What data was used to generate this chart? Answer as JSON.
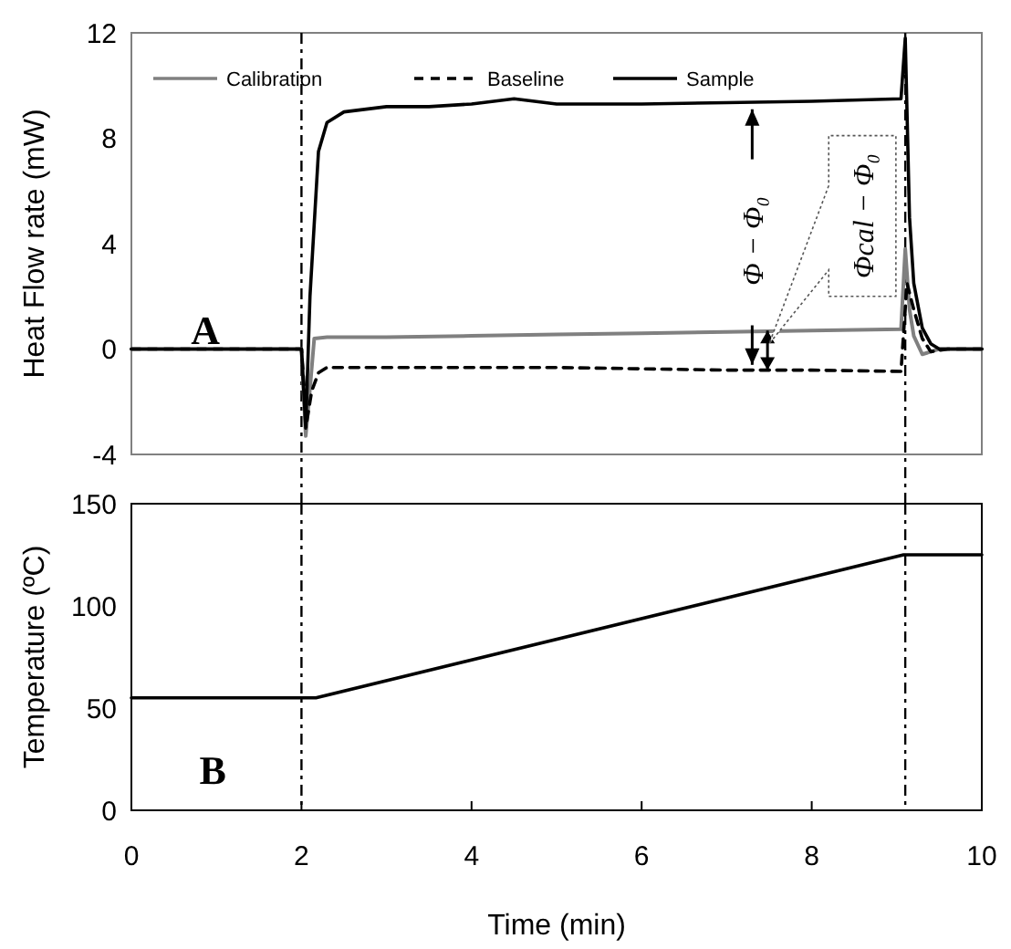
{
  "chart_data": [
    {
      "type": "line",
      "ylabel": "Heat Flow rate (mW)",
      "xlim": [
        0,
        10
      ],
      "ylim": [
        -4,
        12
      ],
      "yticks": [
        -4,
        0,
        4,
        8,
        12
      ],
      "tick_labels": "y",
      "grid": false,
      "legend": "top left",
      "series": [
        {
          "name": "Calibration",
          "color": "#808080",
          "line_style": "solid",
          "x": [
            0,
            2.0,
            2.05,
            2.1,
            2.15,
            2.3,
            3,
            4,
            5,
            6,
            7,
            8,
            9.05,
            9.1,
            9.15,
            9.2,
            9.3,
            9.4,
            9.5,
            10
          ],
          "values": [
            0,
            0,
            -3.3,
            -1.5,
            0.4,
            0.45,
            0.45,
            0.5,
            0.55,
            0.6,
            0.65,
            0.7,
            0.75,
            3.8,
            1.5,
            0.5,
            -0.2,
            -0.1,
            0,
            0
          ]
        },
        {
          "name": "Baseline",
          "color": "#000000",
          "line_style": "dashed",
          "x": [
            0,
            2.0,
            2.06,
            2.12,
            2.2,
            2.3,
            3,
            4,
            5,
            6,
            7,
            8,
            9.05,
            9.12,
            9.2,
            9.3,
            9.4,
            9.6,
            10
          ],
          "values": [
            0,
            0,
            -2.8,
            -1.6,
            -0.9,
            -0.7,
            -0.7,
            -0.7,
            -0.7,
            -0.75,
            -0.8,
            -0.8,
            -0.85,
            2.5,
            1.5,
            0.4,
            -0.1,
            0,
            0
          ]
        },
        {
          "name": "Sample",
          "color": "#000000",
          "line_style": "solid",
          "x": [
            0,
            2.0,
            2.05,
            2.1,
            2.2,
            2.3,
            2.5,
            3,
            3.5,
            4,
            4.5,
            5,
            6,
            7,
            8,
            9.05,
            9.1,
            9.15,
            9.2,
            9.3,
            9.4,
            9.5,
            10
          ],
          "values": [
            0,
            0,
            -3,
            2,
            7.5,
            8.6,
            9.0,
            9.2,
            9.2,
            9.3,
            9.5,
            9.3,
            9.3,
            9.35,
            9.4,
            9.5,
            11.8,
            5,
            2.5,
            0.8,
            0.2,
            0,
            0
          ]
        }
      ],
      "ref_lines": [
        {
          "axis": "x",
          "value": 2.0,
          "line_style": "dashdot"
        },
        {
          "axis": "x",
          "value": 9.1,
          "line_style": "dashdot"
        }
      ],
      "annotations": [
        "A",
        {
          "text": "Φ − Φ₀",
          "x": 7.3,
          "y": 9.37
        },
        "Φcal − Φ₀"
      ]
    },
    {
      "type": "line",
      "xlabel": "Time (min)",
      "ylabel": "Temperature (ºC)",
      "xlim": [
        0,
        10
      ],
      "ylim": [
        0,
        150
      ],
      "xticks": [
        0,
        2,
        4,
        6,
        8,
        10
      ],
      "yticks": [
        0,
        50,
        100,
        150
      ],
      "grid": false,
      "legend": false,
      "series": [
        {
          "color": "#000000",
          "line_style": "solid",
          "x": [
            0,
            2.17,
            9.08,
            10
          ],
          "values": [
            55,
            55,
            125,
            125
          ]
        }
      ],
      "ref_lines": [
        {
          "axis": "x",
          "value": 2.0,
          "line_style": "dashdot"
        },
        {
          "axis": "x",
          "value": 9.1,
          "line_style": "dashdot"
        }
      ],
      "annotations": [
        "B"
      ]
    }
  ]
}
